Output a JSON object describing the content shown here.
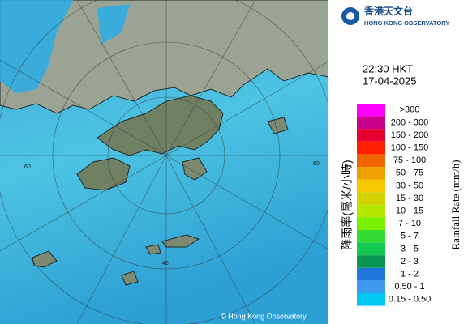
{
  "header": {
    "logo_cn": "香港天文台",
    "logo_en": "HONG KONG OBSERVATORY"
  },
  "time": "22:30 HKT",
  "date": "17-04-2025",
  "map": {
    "ring_labels": [
      "60",
      "40",
      "60"
    ],
    "copyright": "© Hong Kong Observatory"
  },
  "legend": {
    "title_cn": "降雨率(毫米/小時)",
    "title_en": "Rainfall Rate (mm/h)",
    "items": [
      {
        "label": ">300",
        "color": "#ff00ff"
      },
      {
        "label": "200 - 300",
        "color": "#c8008c"
      },
      {
        "label": "150 - 200",
        "color": "#e6002d"
      },
      {
        "label": "100 - 150",
        "color": "#ff1e00"
      },
      {
        "label": "75 - 100",
        "color": "#f06400"
      },
      {
        "label": "50 - 75",
        "color": "#f0a000"
      },
      {
        "label": "30 - 50",
        "color": "#f5c800"
      },
      {
        "label": "15 - 30",
        "color": "#d2d200"
      },
      {
        "label": "10 - 15",
        "color": "#b4e600"
      },
      {
        "label": "7 - 10",
        "color": "#78f000"
      },
      {
        "label": "5 - 7",
        "color": "#32dc32"
      },
      {
        "label": "3 - 5",
        "color": "#14c850"
      },
      {
        "label": "2 - 3",
        "color": "#0a9650"
      },
      {
        "label": "1 - 2",
        "color": "#1e78dc"
      },
      {
        "label": "0.50 - 1",
        "color": "#3c9af0"
      },
      {
        "label": "0.15 - 0.50",
        "color": "#00c8f5"
      }
    ]
  }
}
